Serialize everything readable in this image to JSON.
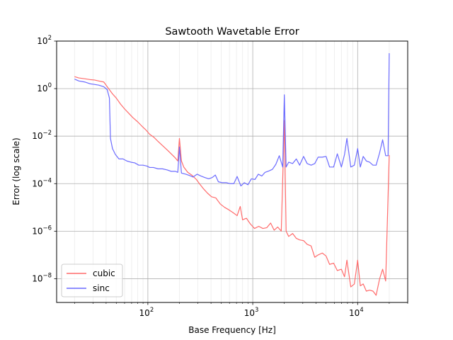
{
  "chart_data": {
    "type": "line",
    "title": "Sawtooth Wavetable Error",
    "xlabel": "Base Frequency [Hz]",
    "ylabel": "Error (log scale)",
    "xscale": "log",
    "yscale": "log",
    "xlim": [
      13.5,
      30000
    ],
    "ylim": [
      1e-09,
      100
    ],
    "grid": "on (major and minor on x, major on y)",
    "legend_position": "lower-left",
    "x_ticks": [
      {
        "value": 100,
        "base": "10",
        "exp": "2"
      },
      {
        "value": 1000,
        "base": "10",
        "exp": "3"
      },
      {
        "value": 10000,
        "base": "10",
        "exp": "4"
      }
    ],
    "y_ticks": [
      {
        "value": 1e-08,
        "base": "10",
        "exp": "−8"
      },
      {
        "value": 1e-06,
        "base": "10",
        "exp": "−6"
      },
      {
        "value": 0.0001,
        "base": "10",
        "exp": "−4"
      },
      {
        "value": 0.01,
        "base": "10",
        "exp": "−2"
      },
      {
        "value": 1,
        "base": "10",
        "exp": "0"
      },
      {
        "value": 100,
        "base": "10",
        "exp": "2"
      }
    ],
    "series": [
      {
        "name": "cubic",
        "color": "#ff6b6b",
        "points": [
          [
            20,
            3.2
          ],
          [
            22,
            2.8
          ],
          [
            25,
            2.6
          ],
          [
            28,
            2.4
          ],
          [
            31,
            2.3
          ],
          [
            34,
            2.1
          ],
          [
            38,
            1.9
          ],
          [
            41,
            1.2
          ],
          [
            43,
            0.9
          ],
          [
            46,
            0.6
          ],
          [
            50,
            0.4
          ],
          [
            55,
            0.22
          ],
          [
            60,
            0.14
          ],
          [
            66,
            0.09
          ],
          [
            72,
            0.06
          ],
          [
            80,
            0.04
          ],
          [
            88,
            0.026
          ],
          [
            96,
            0.018
          ],
          [
            104,
            0.012
          ],
          [
            114,
            0.009
          ],
          [
            125,
            0.006
          ],
          [
            138,
            0.004
          ],
          [
            152,
            0.0027
          ],
          [
            167,
            0.0018
          ],
          [
            183,
            0.0012
          ],
          [
            193,
            0.0009
          ],
          [
            200,
            0.008
          ],
          [
            209,
            0.0009
          ],
          [
            220,
            0.0005
          ],
          [
            240,
            0.0003
          ],
          [
            265,
            0.00022
          ],
          [
            290,
            0.00015
          ],
          [
            310,
            0.0001
          ],
          [
            340,
            6e-05
          ],
          [
            370,
            4e-05
          ],
          [
            405,
            2.8e-05
          ],
          [
            445,
            2.5e-05
          ],
          [
            490,
            1.4e-05
          ],
          [
            540,
            1e-05
          ],
          [
            590,
            8e-06
          ],
          [
            650,
            6e-06
          ],
          [
            710,
            4.5e-06
          ],
          [
            760,
            1.1e-05
          ],
          [
            800,
            3e-06
          ],
          [
            870,
            3.5e-06
          ],
          [
            950,
            2e-06
          ],
          [
            1040,
            1.3e-06
          ],
          [
            1140,
            1.6e-06
          ],
          [
            1250,
            1.3e-06
          ],
          [
            1360,
            1.4e-06
          ],
          [
            1480,
            2.2e-06
          ],
          [
            1600,
            1.1e-06
          ],
          [
            1730,
            1.5e-06
          ],
          [
            1870,
            1e-06
          ],
          [
            2000,
            0.045
          ],
          [
            2080,
            1e-06
          ],
          [
            2200,
            6e-07
          ],
          [
            2400,
            8e-07
          ],
          [
            2600,
            5e-07
          ],
          [
            2800,
            4.3e-07
          ],
          [
            3050,
            4e-07
          ],
          [
            3300,
            2.8e-07
          ],
          [
            3600,
            2.4e-07
          ],
          [
            3900,
            8e-08
          ],
          [
            4200,
            1e-07
          ],
          [
            4600,
            1.2e-07
          ],
          [
            5000,
            9e-08
          ],
          [
            5400,
            4e-08
          ],
          [
            5900,
            4.5e-08
          ],
          [
            6400,
            2.2e-08
          ],
          [
            7000,
            2.5e-08
          ],
          [
            7500,
            1.2e-08
          ],
          [
            7900,
            6e-08
          ],
          [
            8600,
            4.5e-09
          ],
          [
            9300,
            6e-09
          ],
          [
            10000,
            6e-08
          ],
          [
            10600,
            5e-09
          ],
          [
            11300,
            6e-09
          ],
          [
            12100,
            3e-09
          ],
          [
            13000,
            3.3e-09
          ],
          [
            14000,
            3e-09
          ],
          [
            15000,
            2e-09
          ],
          [
            16200,
            1e-08
          ],
          [
            17300,
            2.5e-08
          ],
          [
            18500,
            8e-09
          ],
          [
            20000,
            0.0016
          ]
        ]
      },
      {
        "name": "sinc",
        "color": "#6b6bff",
        "points": [
          [
            20,
            2.5
          ],
          [
            22,
            2.1
          ],
          [
            25,
            1.9
          ],
          [
            28,
            1.6
          ],
          [
            31,
            1.5
          ],
          [
            34,
            1.4
          ],
          [
            38,
            1.2
          ],
          [
            41,
            0.9
          ],
          [
            43,
            0.4
          ],
          [
            44,
            0.008
          ],
          [
            46,
            0.003
          ],
          [
            49,
            0.0017
          ],
          [
            53,
            0.0011
          ],
          [
            58,
            0.0011
          ],
          [
            63,
            0.0009
          ],
          [
            69,
            0.0008
          ],
          [
            75,
            0.00075
          ],
          [
            82,
            0.0006
          ],
          [
            90,
            0.0006
          ],
          [
            98,
            0.00055
          ],
          [
            104,
            0.00048
          ],
          [
            113,
            0.00048
          ],
          [
            125,
            0.00042
          ],
          [
            138,
            0.00042
          ],
          [
            152,
            0.00038
          ],
          [
            167,
            0.00033
          ],
          [
            183,
            0.00033
          ],
          [
            193,
            0.0003
          ],
          [
            200,
            0.0035
          ],
          [
            209,
            0.00028
          ],
          [
            230,
            0.00025
          ],
          [
            250,
            0.00022
          ],
          [
            270,
            0.00019
          ],
          [
            295,
            0.00025
          ],
          [
            320,
            0.00021
          ],
          [
            350,
            0.00018
          ],
          [
            380,
            0.00016
          ],
          [
            410,
            0.00018
          ],
          [
            440,
            0.00023
          ],
          [
            470,
            0.00012
          ],
          [
            510,
            0.00011
          ],
          [
            560,
            0.00011
          ],
          [
            610,
            0.0001
          ],
          [
            660,
            0.0001
          ],
          [
            710,
            0.0002
          ],
          [
            770,
            8e-05
          ],
          [
            830,
            0.00011
          ],
          [
            900,
            9e-05
          ],
          [
            970,
            0.00016
          ],
          [
            1050,
            0.00015
          ],
          [
            1130,
            0.00025
          ],
          [
            1220,
            0.00021
          ],
          [
            1310,
            0.0003
          ],
          [
            1420,
            0.00034
          ],
          [
            1540,
            0.0004
          ],
          [
            1660,
            0.00065
          ],
          [
            1790,
            0.0015
          ],
          [
            1930,
            0.0005
          ],
          [
            2000,
            0.55
          ],
          [
            2080,
            0.0005
          ],
          [
            2200,
            0.0008
          ],
          [
            2400,
            0.0007
          ],
          [
            2600,
            0.0011
          ],
          [
            2800,
            0.0006
          ],
          [
            3050,
            0.0014
          ],
          [
            3300,
            0.0007
          ],
          [
            3600,
            0.0006
          ],
          [
            3900,
            0.0007
          ],
          [
            4200,
            0.0013
          ],
          [
            4600,
            0.0013
          ],
          [
            5000,
            0.0014
          ],
          [
            5400,
            0.0005
          ],
          [
            5900,
            0.0005
          ],
          [
            6400,
            0.0018
          ],
          [
            7000,
            0.0005
          ],
          [
            7500,
            0.0017
          ],
          [
            7900,
            0.008
          ],
          [
            8600,
            0.0005
          ],
          [
            9300,
            0.0006
          ],
          [
            10000,
            0.003
          ],
          [
            10600,
            0.0005
          ],
          [
            11300,
            0.0014
          ],
          [
            12100,
            0.0009
          ],
          [
            13000,
            0.0008
          ],
          [
            14000,
            0.0006
          ],
          [
            15000,
            0.0006
          ],
          [
            16200,
            0.002
          ],
          [
            17300,
            0.007
          ],
          [
            18500,
            0.0015
          ],
          [
            19500,
            0.0015
          ],
          [
            20000,
            31
          ]
        ]
      }
    ]
  }
}
